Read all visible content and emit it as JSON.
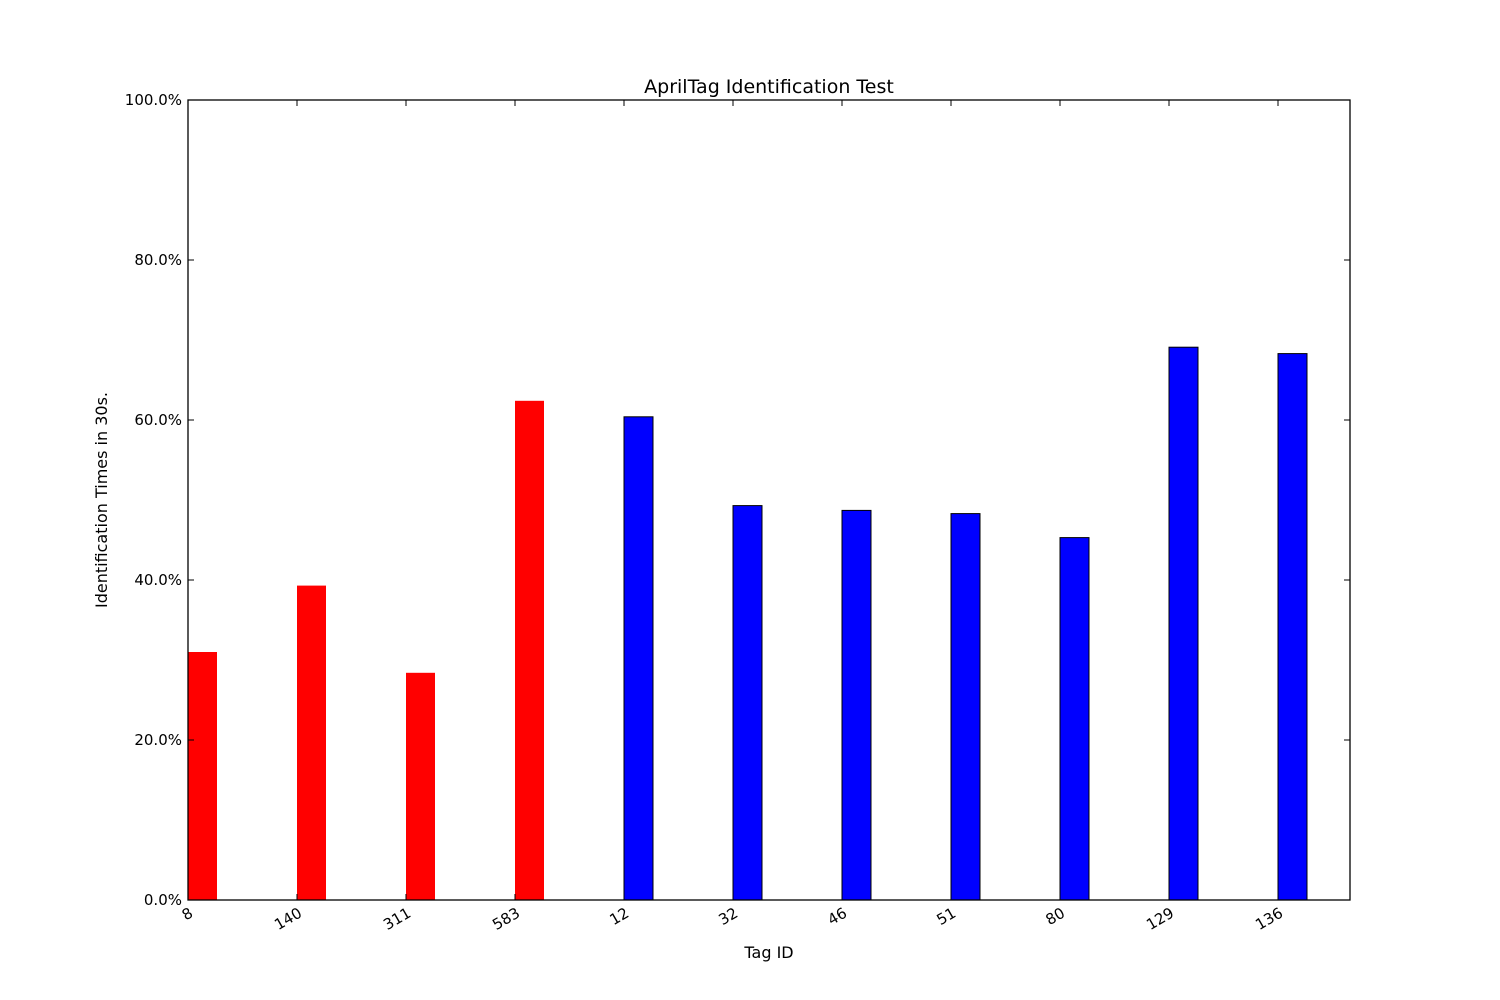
{
  "chart_data": {
    "type": "bar",
    "title": "AprilTag Identification Test",
    "xlabel": "Tag ID",
    "ylabel": "Identification Times in 30s.",
    "categories": [
      "8",
      "140",
      "311",
      "583",
      "12",
      "32",
      "46",
      "51",
      "80",
      "129",
      "136"
    ],
    "values": [
      31.0,
      39.3,
      28.4,
      62.4,
      60.4,
      49.3,
      48.7,
      48.3,
      45.3,
      69.1,
      68.3
    ],
    "colors": [
      "#ff0000",
      "#ff0000",
      "#ff0000",
      "#ff0000",
      "#0000ff",
      "#0000ff",
      "#0000ff",
      "#0000ff",
      "#0000ff",
      "#0000ff",
      "#0000ff"
    ],
    "ylim": [
      0,
      100
    ],
    "yticks": [
      0,
      20,
      40,
      60,
      80,
      100
    ],
    "ytick_labels": [
      "0.0%",
      "20.0%",
      "40.0%",
      "60.0%",
      "80.0%",
      "100.0%"
    ],
    "grid": false,
    "legend": "none"
  }
}
